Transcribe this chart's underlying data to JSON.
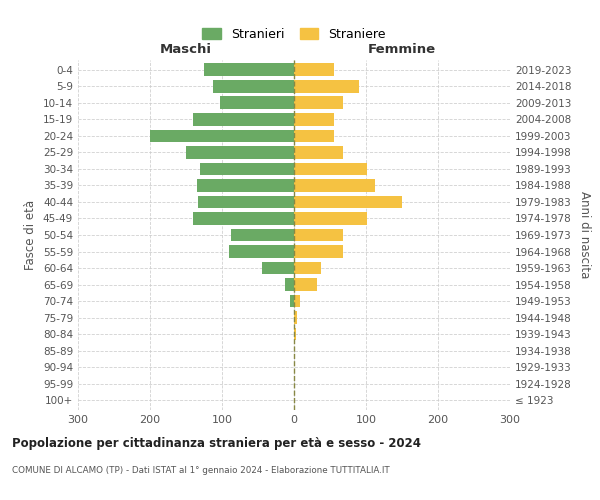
{
  "age_groups": [
    "100+",
    "95-99",
    "90-94",
    "85-89",
    "80-84",
    "75-79",
    "70-74",
    "65-69",
    "60-64",
    "55-59",
    "50-54",
    "45-49",
    "40-44",
    "35-39",
    "30-34",
    "25-29",
    "20-24",
    "15-19",
    "10-14",
    "5-9",
    "0-4"
  ],
  "birth_years": [
    "≤ 1923",
    "1924-1928",
    "1929-1933",
    "1934-1938",
    "1939-1943",
    "1944-1948",
    "1949-1953",
    "1954-1958",
    "1959-1963",
    "1964-1968",
    "1969-1973",
    "1974-1978",
    "1979-1983",
    "1984-1988",
    "1989-1993",
    "1994-1998",
    "1999-2003",
    "2004-2008",
    "2009-2013",
    "2014-2018",
    "2019-2023"
  ],
  "males": [
    0,
    0,
    0,
    0,
    0,
    0,
    6,
    12,
    45,
    90,
    88,
    140,
    133,
    135,
    130,
    150,
    200,
    140,
    103,
    112,
    125
  ],
  "females": [
    0,
    0,
    0,
    0,
    3,
    4,
    9,
    32,
    38,
    68,
    68,
    102,
    150,
    112,
    102,
    68,
    55,
    55,
    68,
    90,
    55
  ],
  "male_color": "#6aaa64",
  "female_color": "#f5c242",
  "grid_color": "#cccccc",
  "dashed_line_color": "#888844",
  "title": "Popolazione per cittadinanza straniera per età e sesso - 2024",
  "subtitle": "COMUNE DI ALCAMO (TP) - Dati ISTAT al 1° gennaio 2024 - Elaborazione TUTTITALIA.IT",
  "xlabel_left": "Maschi",
  "xlabel_right": "Femmine",
  "ylabel_left": "Fasce di età",
  "ylabel_right": "Anni di nascita",
  "legend_male": "Stranieri",
  "legend_female": "Straniere",
  "xlim": 300,
  "background_color": "#ffffff"
}
